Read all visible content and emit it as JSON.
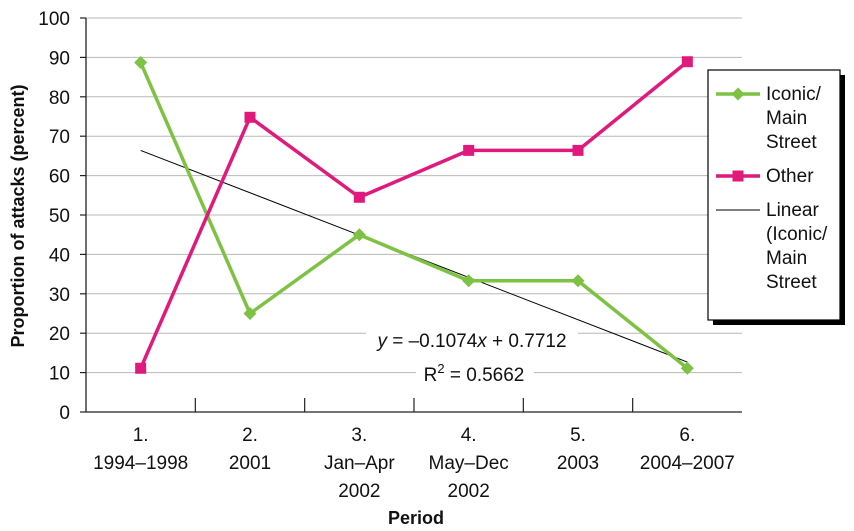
{
  "chart_data": {
    "type": "line",
    "categories": [
      [
        "1.",
        "1994–1998"
      ],
      [
        "2.",
        "2001"
      ],
      [
        "3.",
        "Jan–Apr",
        "2002"
      ],
      [
        "4.",
        "May–Dec",
        "2002"
      ],
      [
        "5.",
        "2003"
      ],
      [
        "6.",
        "2004–2007"
      ]
    ],
    "series": [
      {
        "name": "Iconic/Main Street",
        "legend_lines": [
          "Iconic/",
          "Main",
          "Street"
        ],
        "color": "#7dc243",
        "marker": "diamond",
        "values": [
          88.7,
          25,
          45,
          33.3,
          33.3,
          11.1
        ]
      },
      {
        "name": "Other",
        "legend_lines": [
          "Other"
        ],
        "color": "#e0197d",
        "marker": "square",
        "values": [
          11.1,
          74.8,
          54.5,
          66.4,
          66.4,
          88.9
        ]
      }
    ],
    "trendline": {
      "name": "Linear (Iconic/Main Street",
      "legend_lines": [
        "Linear",
        "(Iconic/",
        "Main",
        "Street"
      ],
      "color": "#000000",
      "slope": -10.74,
      "intercept": 77.12,
      "equation_prefix_italic": "y",
      "equation_mid": " = –0.1074",
      "equation_x_italic": "x",
      "equation_suffix": " + 0.7712",
      "r2_prefix": "R",
      "r2_sup": "2",
      "r2_value": " = 0.5662"
    },
    "xlabel": "Period",
    "ylabel": "Proportion of attacks (percent)",
    "ylim": [
      0,
      100
    ],
    "yticks": [
      0,
      10,
      20,
      30,
      40,
      50,
      60,
      70,
      80,
      90,
      100
    ],
    "grid": true,
    "legend_position": "right"
  }
}
